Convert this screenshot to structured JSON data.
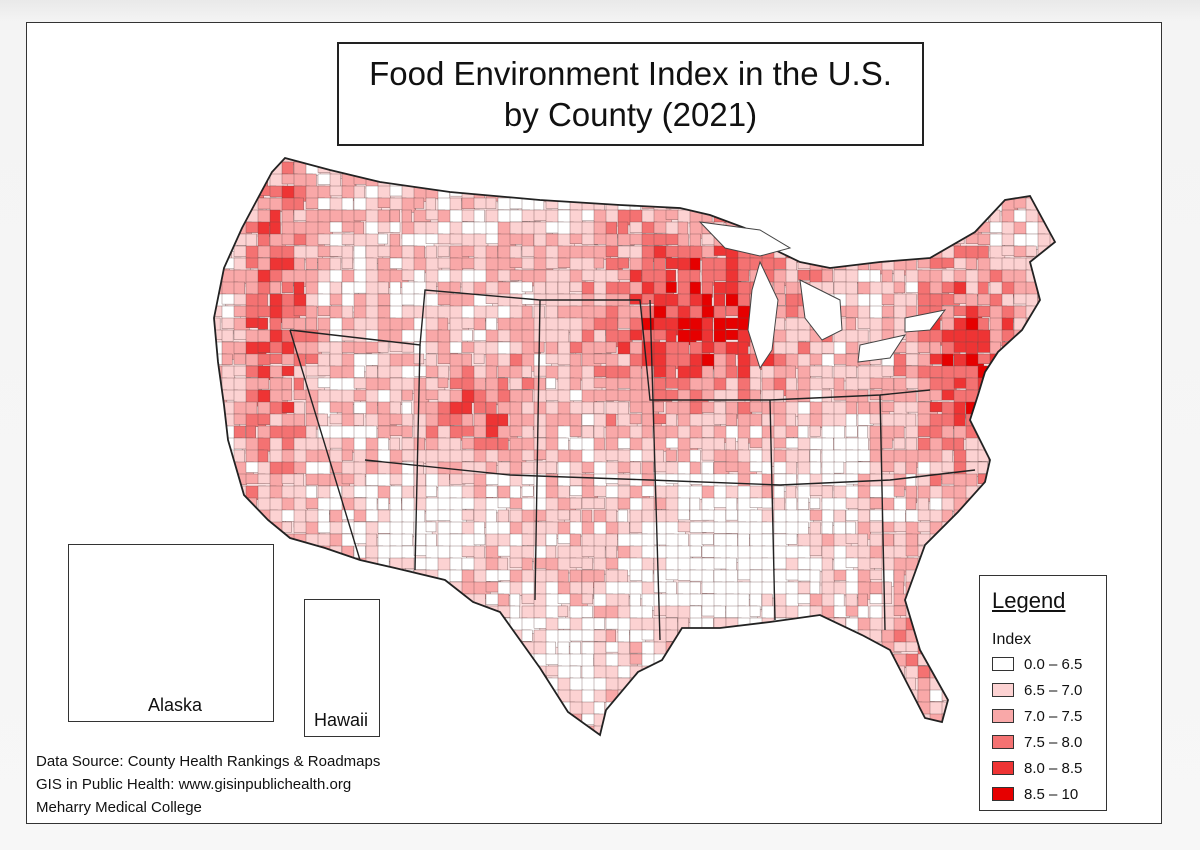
{
  "title": {
    "line1": "Food Environment Index in the U.S.",
    "line2": "by County (2021)"
  },
  "insets": {
    "alaska": "Alaska",
    "hawaii": "Hawaii"
  },
  "legend": {
    "title": "Legend",
    "subtitle": "Index",
    "items": [
      {
        "range": "0.0 – 6.5",
        "color": "#ffffff"
      },
      {
        "range": "6.5 – 7.0",
        "color": "#fcd2d2"
      },
      {
        "range": "7.0 – 7.5",
        "color": "#f9a8a8"
      },
      {
        "range": "7.5 – 8.0",
        "color": "#f47272"
      },
      {
        "range": "8.0 – 8.5",
        "color": "#ee3434"
      },
      {
        "range": "8.5 – 10",
        "color": "#e60000"
      }
    ]
  },
  "credits": [
    "Data Source: County Health Rankings & Roadmaps",
    "GIS in Public Health: www.gisinpublichealth.org",
    "Meharry Medical College"
  ]
}
